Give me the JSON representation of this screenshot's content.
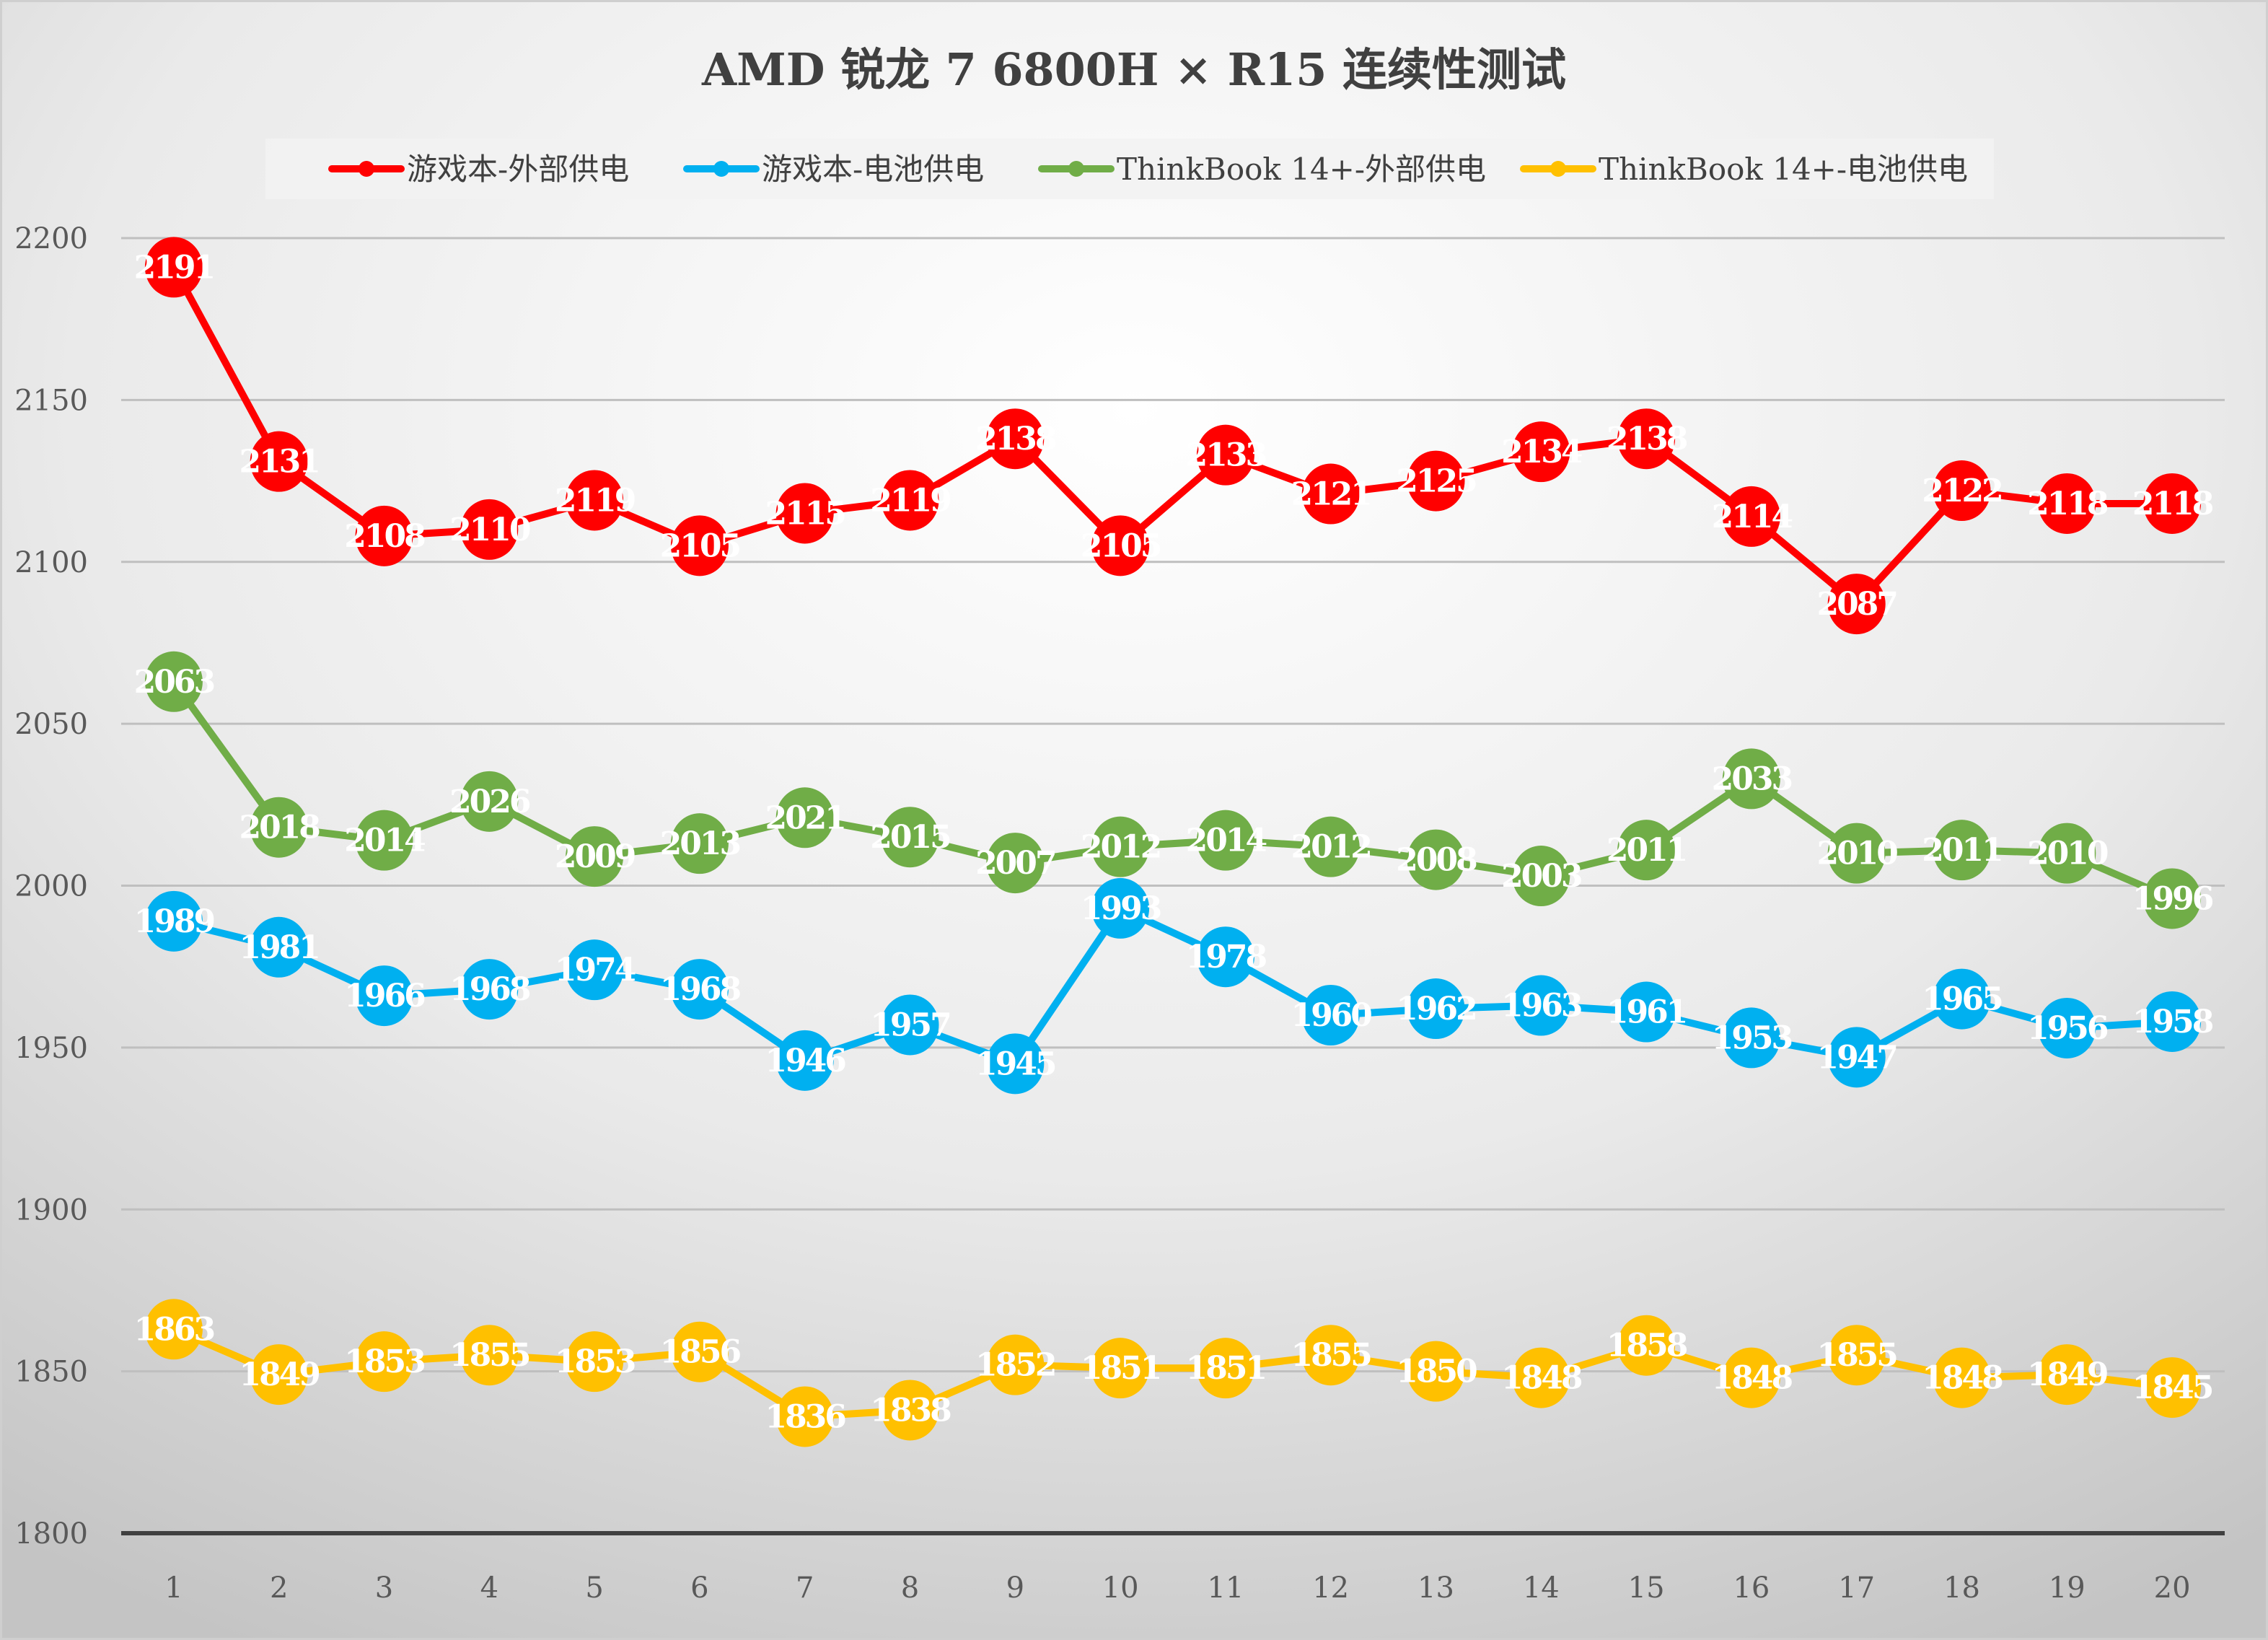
{
  "chart_data": {
    "type": "line",
    "title": "AMD 锐龙 7 6800H × R15 连续性测试",
    "xlabel": "",
    "ylabel": "",
    "x": [
      1,
      2,
      3,
      4,
      5,
      6,
      7,
      8,
      9,
      10,
      11,
      12,
      13,
      14,
      15,
      16,
      17,
      18,
      19,
      20
    ],
    "ylim": [
      1800,
      2200
    ],
    "yticks": [
      1800,
      1850,
      1900,
      1950,
      2000,
      2050,
      2100,
      2150,
      2200
    ],
    "grid": true,
    "legend_position": "top",
    "series": [
      {
        "name": "游戏本-外部供电",
        "color": "#ff0000",
        "values": [
          2191,
          2131,
          2108,
          2110,
          2119,
          2105,
          2115,
          2119,
          2138,
          2105,
          2133,
          2121,
          2125,
          2134,
          2138,
          2114,
          2087,
          2122,
          2118,
          2118
        ]
      },
      {
        "name": "游戏本-电池供电",
        "color": "#00b0f0",
        "values": [
          1989,
          1981,
          1966,
          1968,
          1974,
          1968,
          1946,
          1957,
          1945,
          1993,
          1978,
          1960,
          1962,
          1963,
          1961,
          1953,
          1947,
          1965,
          1956,
          1958
        ]
      },
      {
        "name": "ThinkBook 14+-外部供电",
        "color": "#70ad47",
        "values": [
          2063,
          2018,
          2014,
          2026,
          2009,
          2013,
          2021,
          2015,
          2007,
          2012,
          2014,
          2012,
          2008,
          2003,
          2011,
          2033,
          2010,
          2011,
          2010,
          1996
        ]
      },
      {
        "name": "ThinkBook 14+-电池供电",
        "color": "#ffc000",
        "values": [
          1863,
          1849,
          1853,
          1855,
          1853,
          1856,
          1836,
          1838,
          1852,
          1851,
          1851,
          1855,
          1850,
          1848,
          1858,
          1848,
          1855,
          1848,
          1849,
          1845
        ]
      }
    ]
  }
}
